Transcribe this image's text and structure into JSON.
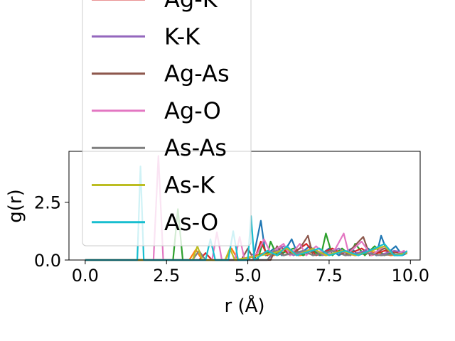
{
  "chart_data": {
    "type": "line",
    "title": "",
    "xlabel": "r (Å)",
    "ylabel": "g(r)",
    "xlim": [
      -0.5,
      10.3
    ],
    "ylim": [
      0,
      4.7
    ],
    "xticks": [
      0.0,
      2.5,
      5.0,
      7.5,
      10.0
    ],
    "xtick_labels": [
      "0.0",
      "2.5",
      "5.0",
      "7.5",
      "10.0"
    ],
    "yticks": [
      0.0,
      2.5
    ],
    "ytick_labels": [
      "0.0",
      "2.5"
    ],
    "grid": false,
    "legend_position": "upper-left, overlapping the plot and extending above it",
    "series": [
      {
        "name": "",
        "color": "#1f77b4",
        "legend": false,
        "points": [
          [
            0,
            0
          ],
          [
            5.0,
            0
          ],
          [
            5.2,
            0.3
          ],
          [
            5.4,
            1.7
          ],
          [
            5.55,
            0.2
          ],
          [
            5.8,
            0.5
          ],
          [
            6.05,
            0.2
          ],
          [
            6.35,
            0.9
          ],
          [
            6.55,
            0.2
          ],
          [
            6.9,
            0.6
          ],
          [
            7.2,
            0.2
          ],
          [
            7.5,
            0.5
          ],
          [
            7.8,
            0.2
          ],
          [
            8.2,
            0.5
          ],
          [
            8.4,
            0.2
          ],
          [
            8.7,
            0.5
          ],
          [
            8.95,
            0.2
          ],
          [
            9.1,
            1.05
          ],
          [
            9.3,
            0.3
          ],
          [
            9.55,
            0.6
          ],
          [
            9.75,
            0.2
          ],
          [
            9.9,
            0.3
          ]
        ]
      },
      {
        "name": "",
        "color": "#ff7f0e",
        "legend": false,
        "points": [
          [
            0,
            0
          ],
          [
            3.2,
            0
          ],
          [
            3.4,
            0.45
          ],
          [
            3.6,
            0
          ],
          [
            4.3,
            0
          ],
          [
            4.5,
            0.5
          ],
          [
            4.7,
            0
          ],
          [
            5.5,
            0.3
          ],
          [
            5.8,
            0.2
          ],
          [
            6.3,
            0.45
          ],
          [
            6.6,
            0.2
          ],
          [
            7.0,
            0.35
          ],
          [
            7.4,
            0.2
          ],
          [
            7.9,
            0.35
          ],
          [
            8.3,
            0.2
          ],
          [
            8.9,
            0.35
          ],
          [
            9.4,
            0.2
          ],
          [
            9.9,
            0.3
          ]
        ]
      },
      {
        "name": "",
        "color": "#2ca02c",
        "legend": false,
        "points": [
          [
            0,
            0
          ],
          [
            2.7,
            0
          ],
          [
            2.85,
            2.2
          ],
          [
            3.0,
            0
          ],
          [
            5.3,
            0
          ],
          [
            5.45,
            0.7
          ],
          [
            5.6,
            0.2
          ],
          [
            5.7,
            0.8
          ],
          [
            5.9,
            0.2
          ],
          [
            6.4,
            0.5
          ],
          [
            6.7,
            0.2
          ],
          [
            7.0,
            0.4
          ],
          [
            7.25,
            0.2
          ],
          [
            7.4,
            1.15
          ],
          [
            7.6,
            0.2
          ],
          [
            7.9,
            0.5
          ],
          [
            8.15,
            0.2
          ],
          [
            8.3,
            0.7
          ],
          [
            8.6,
            0.2
          ],
          [
            8.9,
            0.6
          ],
          [
            9.2,
            0.2
          ],
          [
            9.5,
            0.35
          ],
          [
            9.9,
            0.3
          ]
        ]
      },
      {
        "name": "Ag-K",
        "color": "#d62728",
        "legend": true,
        "points": [
          [
            0,
            0
          ],
          [
            3.5,
            0
          ],
          [
            3.7,
            0.3
          ],
          [
            3.9,
            0
          ],
          [
            5.2,
            0
          ],
          [
            5.4,
            0.8
          ],
          [
            5.6,
            0.2
          ],
          [
            6.0,
            0.6
          ],
          [
            6.3,
            0.2
          ],
          [
            6.8,
            0.7
          ],
          [
            7.1,
            0.2
          ],
          [
            7.6,
            0.5
          ],
          [
            8.0,
            0.2
          ],
          [
            8.5,
            0.5
          ],
          [
            8.8,
            0.2
          ],
          [
            9.2,
            0.4
          ],
          [
            9.9,
            0.3
          ]
        ]
      },
      {
        "name": "K-K",
        "color": "#9467bd",
        "legend": true,
        "points": [
          [
            0,
            0
          ],
          [
            5.6,
            0
          ],
          [
            5.8,
            0.3
          ],
          [
            6.1,
            0.6
          ],
          [
            6.4,
            0.2
          ],
          [
            7.0,
            0.5
          ],
          [
            7.3,
            0.2
          ],
          [
            7.8,
            0.5
          ],
          [
            8.1,
            0.2
          ],
          [
            8.6,
            0.4
          ],
          [
            9.0,
            0.2
          ],
          [
            9.5,
            0.4
          ],
          [
            9.9,
            0.3
          ]
        ]
      },
      {
        "name": "Ag-As",
        "color": "#8c564b",
        "legend": true,
        "points": [
          [
            0,
            0
          ],
          [
            4.8,
            0
          ],
          [
            5.0,
            0.5
          ],
          [
            5.2,
            0
          ],
          [
            5.7,
            0
          ],
          [
            5.9,
            0.6
          ],
          [
            6.1,
            0.2
          ],
          [
            6.6,
            0.5
          ],
          [
            6.85,
            1.05
          ],
          [
            7.0,
            0.2
          ],
          [
            7.6,
            0.4
          ],
          [
            8.0,
            0.2
          ],
          [
            8.55,
            1.0
          ],
          [
            8.75,
            0.2
          ],
          [
            9.2,
            0.5
          ],
          [
            9.6,
            0.2
          ],
          [
            9.9,
            0.3
          ]
        ]
      },
      {
        "name": "Ag-O",
        "color": "#e377c2",
        "legend": true,
        "points": [
          [
            0,
            0
          ],
          [
            2.1,
            0
          ],
          [
            2.25,
            4.5
          ],
          [
            2.4,
            0
          ],
          [
            3.9,
            0
          ],
          [
            4.05,
            1.2
          ],
          [
            4.2,
            0
          ],
          [
            4.6,
            0
          ],
          [
            4.75,
            1.0
          ],
          [
            4.9,
            0
          ],
          [
            5.3,
            0.3
          ],
          [
            5.5,
            0.9
          ],
          [
            5.7,
            0.3
          ],
          [
            6.1,
            0.7
          ],
          [
            6.3,
            0.2
          ],
          [
            6.6,
            0.7
          ],
          [
            6.8,
            0.2
          ],
          [
            7.1,
            0.6
          ],
          [
            7.4,
            0.2
          ],
          [
            7.7,
            0.5
          ],
          [
            7.95,
            1.15
          ],
          [
            8.1,
            0.3
          ],
          [
            8.5,
            0.8
          ],
          [
            8.8,
            0.2
          ],
          [
            9.2,
            0.6
          ],
          [
            9.5,
            0.2
          ],
          [
            9.8,
            0.4
          ],
          [
            9.9,
            0.3
          ]
        ]
      },
      {
        "name": "As-As",
        "color": "#7f7f7f",
        "legend": true,
        "points": [
          [
            0,
            0
          ],
          [
            3.3,
            0
          ],
          [
            3.5,
            0.4
          ],
          [
            3.7,
            0
          ],
          [
            5.6,
            0
          ],
          [
            5.8,
            0.4
          ],
          [
            6.1,
            0.2
          ],
          [
            6.7,
            0.4
          ],
          [
            7.0,
            0.2
          ],
          [
            7.6,
            0.4
          ],
          [
            8.0,
            0.2
          ],
          [
            8.6,
            0.3
          ],
          [
            9.1,
            0.2
          ],
          [
            9.9,
            0.3
          ]
        ]
      },
      {
        "name": "As-K",
        "color": "#bcbd22",
        "legend": true,
        "points": [
          [
            0,
            0
          ],
          [
            3.3,
            0
          ],
          [
            3.45,
            0.6
          ],
          [
            3.6,
            0
          ],
          [
            4.3,
            0
          ],
          [
            4.45,
            0.5
          ],
          [
            4.6,
            0
          ],
          [
            5.8,
            0.3
          ],
          [
            6.2,
            0.5
          ],
          [
            6.5,
            0.2
          ],
          [
            7.0,
            0.5
          ],
          [
            7.4,
            0.2
          ],
          [
            7.9,
            0.4
          ],
          [
            8.3,
            0.2
          ],
          [
            8.8,
            0.4
          ],
          [
            9.2,
            0.6
          ],
          [
            9.5,
            0.2
          ],
          [
            9.9,
            0.3
          ]
        ]
      },
      {
        "name": "As-O",
        "color": "#17becf",
        "legend": true,
        "points": [
          [
            0,
            0
          ],
          [
            1.6,
            0
          ],
          [
            1.7,
            4.05
          ],
          [
            1.8,
            0
          ],
          [
            3.7,
            0
          ],
          [
            3.85,
            0.9
          ],
          [
            4.0,
            0
          ],
          [
            4.4,
            0
          ],
          [
            4.55,
            1.25
          ],
          [
            4.7,
            0
          ],
          [
            5.0,
            0
          ],
          [
            5.1,
            1.9
          ],
          [
            5.2,
            0
          ],
          [
            5.6,
            0.4
          ],
          [
            5.9,
            0.2
          ],
          [
            6.2,
            0.6
          ],
          [
            6.5,
            0.2
          ],
          [
            7.2,
            0.5
          ],
          [
            7.5,
            0.2
          ],
          [
            8.0,
            0.4
          ],
          [
            8.4,
            0.2
          ],
          [
            8.9,
            0.5
          ],
          [
            9.2,
            0.7
          ],
          [
            9.5,
            0.2
          ],
          [
            9.75,
            0.2
          ],
          [
            9.9,
            0.4
          ]
        ]
      }
    ]
  }
}
